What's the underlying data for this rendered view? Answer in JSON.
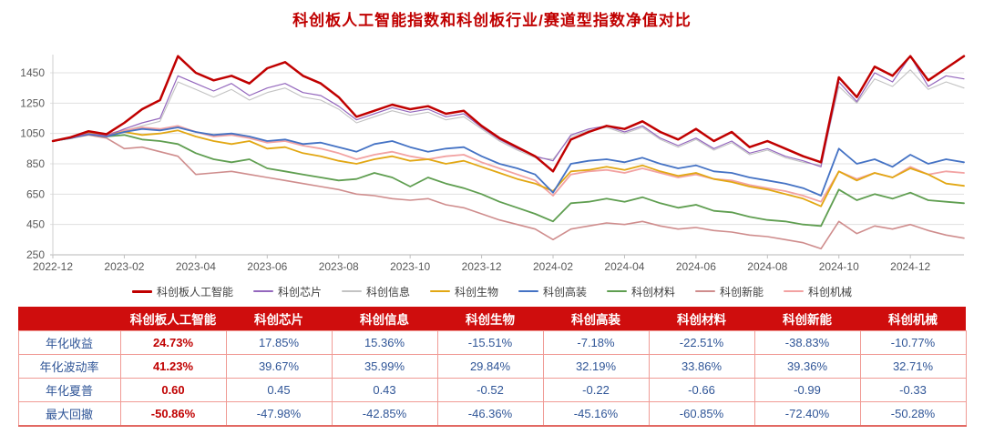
{
  "page_title": "科创板人工智能指数和科创板行业/赛道型指数净值对比",
  "chart_data": {
    "type": "line",
    "title": "科创板人工智能指数和科创板行业/赛道型指数净值对比",
    "xlabel": "",
    "ylabel": "",
    "x_ticks": [
      "2022-12",
      "2023-02",
      "2023-04",
      "2023-06",
      "2023-08",
      "2023-10",
      "2023-12",
      "2024-02",
      "2024-04",
      "2024-06",
      "2024-08",
      "2024-10",
      "2024-12"
    ],
    "y_ticks": [
      250,
      450,
      650,
      850,
      1050,
      1250,
      1450
    ],
    "ylim": [
      250,
      1620
    ],
    "months_total": 25.5,
    "points_step_months": 0.5,
    "grid": "horizontal",
    "legend_position": "bottom",
    "axis_text_color": "#595959",
    "grid_color": "#e0e0e0",
    "series": [
      {
        "name": "科创板人工智能",
        "color": "#c00000",
        "width": 2.5,
        "values": [
          1000,
          1025,
          1065,
          1045,
          1120,
          1210,
          1270,
          1560,
          1450,
          1400,
          1430,
          1380,
          1480,
          1520,
          1430,
          1380,
          1290,
          1160,
          1200,
          1240,
          1210,
          1230,
          1180,
          1200,
          1100,
          1020,
          960,
          900,
          800,
          1010,
          1060,
          1100,
          1080,
          1130,
          1060,
          1010,
          1080,
          1000,
          1060,
          960,
          1000,
          950,
          900,
          860,
          1420,
          1290,
          1490,
          1430,
          1560,
          1400,
          1480,
          1560
        ]
      },
      {
        "name": "科创芯片",
        "color": "#9467bd",
        "width": 1.2,
        "values": [
          1000,
          1020,
          1050,
          1035,
          1080,
          1120,
          1150,
          1430,
          1380,
          1330,
          1380,
          1300,
          1350,
          1380,
          1320,
          1300,
          1230,
          1140,
          1180,
          1220,
          1190,
          1210,
          1160,
          1180,
          1090,
          1010,
          950,
          900,
          870,
          1040,
          1080,
          1100,
          1060,
          1100,
          1020,
          970,
          1020,
          950,
          1000,
          920,
          950,
          900,
          870,
          830,
          1390,
          1260,
          1450,
          1390,
          1560,
          1360,
          1430,
          1410
        ]
      },
      {
        "name": "科创信息",
        "color": "#c3c3c3",
        "width": 1.1,
        "values": [
          1000,
          1015,
          1045,
          1030,
          1070,
          1100,
          1130,
          1390,
          1340,
          1290,
          1340,
          1270,
          1320,
          1350,
          1290,
          1270,
          1210,
          1120,
          1160,
          1200,
          1170,
          1190,
          1140,
          1160,
          1080,
          1000,
          940,
          890,
          880,
          1030,
          1070,
          1090,
          1050,
          1090,
          1010,
          960,
          1010,
          940,
          990,
          910,
          940,
          890,
          860,
          840,
          1360,
          1250,
          1410,
          1360,
          1470,
          1340,
          1390,
          1350
        ]
      },
      {
        "name": "科创生物",
        "color": "#e2a713",
        "width": 1.8,
        "values": [
          1000,
          1025,
          1055,
          1040,
          1060,
          1040,
          1050,
          1070,
          1030,
          1000,
          980,
          1000,
          950,
          960,
          920,
          900,
          870,
          850,
          880,
          900,
          870,
          880,
          850,
          870,
          830,
          790,
          750,
          720,
          670,
          800,
          810,
          830,
          810,
          840,
          800,
          770,
          790,
          750,
          730,
          700,
          680,
          650,
          620,
          570,
          800,
          740,
          790,
          760,
          820,
          780,
          720,
          705
        ]
      },
      {
        "name": "科创高装",
        "color": "#4472c4",
        "width": 1.8,
        "values": [
          1000,
          1020,
          1045,
          1030,
          1060,
          1080,
          1070,
          1090,
          1060,
          1040,
          1050,
          1030,
          1000,
          1010,
          980,
          990,
          960,
          930,
          980,
          1000,
          960,
          930,
          950,
          960,
          900,
          850,
          820,
          780,
          660,
          850,
          870,
          880,
          860,
          890,
          850,
          820,
          840,
          800,
          790,
          760,
          740,
          720,
          690,
          640,
          950,
          850,
          880,
          830,
          910,
          850,
          880,
          860
        ]
      },
      {
        "name": "科创材料",
        "color": "#5f9e50",
        "width": 1.8,
        "values": [
          1000,
          1020,
          1045,
          1030,
          1040,
          1010,
          1000,
          980,
          920,
          880,
          860,
          880,
          820,
          800,
          780,
          760,
          740,
          750,
          790,
          760,
          700,
          760,
          720,
          690,
          650,
          600,
          560,
          520,
          470,
          590,
          600,
          620,
          600,
          630,
          590,
          560,
          580,
          540,
          530,
          500,
          480,
          470,
          450,
          440,
          680,
          610,
          650,
          620,
          660,
          610,
          600,
          590
        ]
      },
      {
        "name": "科创新能",
        "color": "#cf8d8d",
        "width": 1.6,
        "values": [
          1000,
          1020,
          1040,
          1020,
          950,
          960,
          930,
          900,
          780,
          790,
          800,
          780,
          760,
          740,
          720,
          700,
          680,
          650,
          640,
          620,
          610,
          620,
          580,
          560,
          520,
          480,
          450,
          420,
          350,
          420,
          440,
          460,
          450,
          470,
          440,
          420,
          430,
          410,
          400,
          380,
          370,
          350,
          330,
          290,
          470,
          390,
          440,
          420,
          450,
          410,
          380,
          360
        ]
      },
      {
        "name": "科创机械",
        "color": "#f2a2a2",
        "width": 1.8,
        "values": [
          1000,
          1025,
          1060,
          1045,
          1070,
          1090,
          1080,
          1100,
          1060,
          1030,
          1040,
          1020,
          990,
          1000,
          970,
          950,
          920,
          880,
          910,
          930,
          900,
          880,
          900,
          910,
          860,
          820,
          780,
          740,
          640,
          780,
          800,
          810,
          790,
          820,
          790,
          760,
          780,
          750,
          740,
          710,
          690,
          670,
          640,
          600,
          800,
          750,
          790,
          760,
          830,
          780,
          800,
          790
        ]
      }
    ]
  },
  "table": {
    "columns": [
      "",
      "科创板人工智能",
      "科创芯片",
      "科创信息",
      "科创生物",
      "科创高装",
      "科创材料",
      "科创新能",
      "科创机械"
    ],
    "highlight_column": "科创板人工智能",
    "rows": [
      {
        "label": "年化收益",
        "values": [
          "24.73%",
          "17.85%",
          "15.36%",
          "-15.51%",
          "-7.18%",
          "-22.51%",
          "-38.83%",
          "-10.77%"
        ]
      },
      {
        "label": "年化波动率",
        "values": [
          "41.23%",
          "39.67%",
          "35.99%",
          "29.84%",
          "32.19%",
          "33.86%",
          "39.36%",
          "32.71%"
        ]
      },
      {
        "label": "年化夏普",
        "values": [
          "0.60",
          "0.45",
          "0.43",
          "-0.52",
          "-0.22",
          "-0.66",
          "-0.99",
          "-0.33"
        ]
      },
      {
        "label": "最大回撤",
        "values": [
          "-50.86%",
          "-47.98%",
          "-42.85%",
          "-46.36%",
          "-45.16%",
          "-60.85%",
          "-72.40%",
          "-50.28%"
        ]
      }
    ]
  },
  "colors": {
    "title": "#c00000",
    "table_header_bg": "#cf0d0d",
    "table_header_text": "#ffffff",
    "table_value_text": "#2f5597",
    "table_highlight_text": "#c00000",
    "table_border": "#f09b95"
  }
}
